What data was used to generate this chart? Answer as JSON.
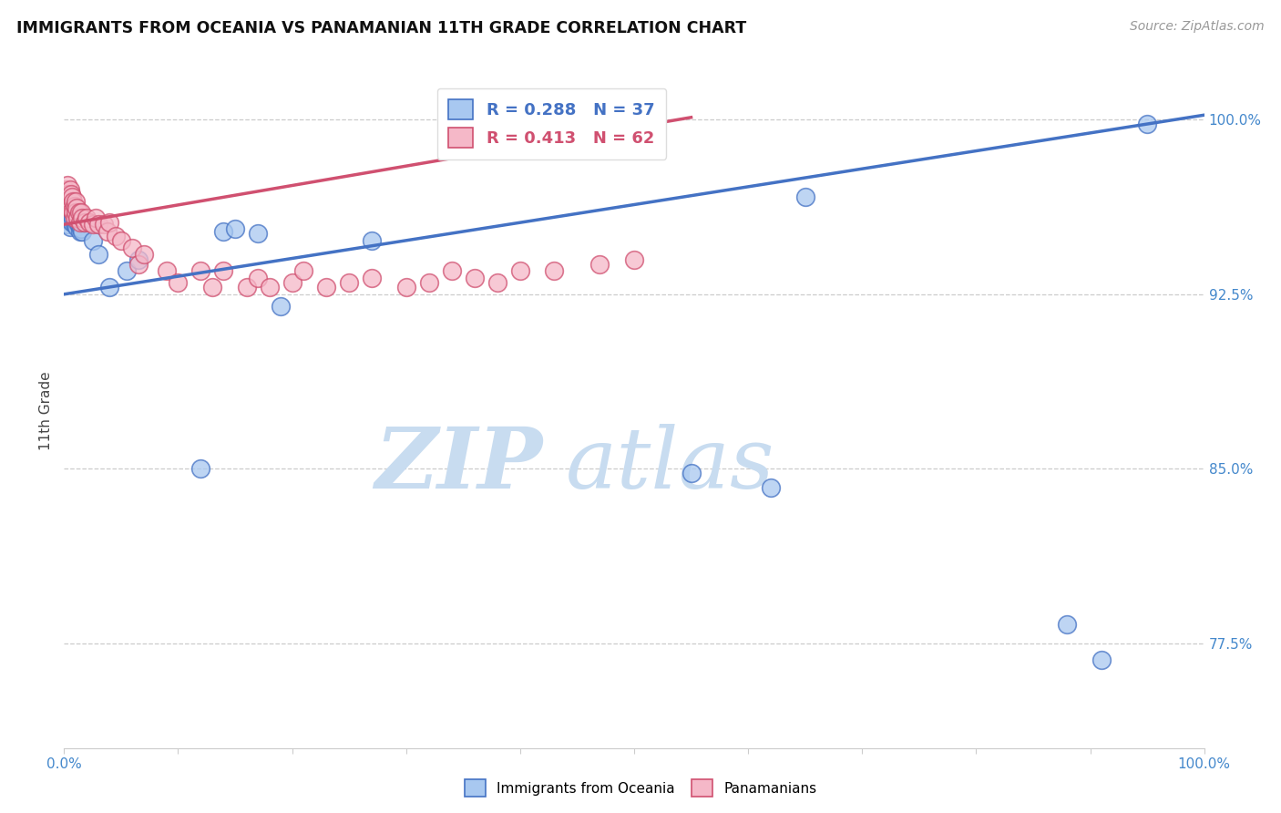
{
  "title": "IMMIGRANTS FROM OCEANIA VS PANAMANIAN 11TH GRADE CORRELATION CHART",
  "source": "Source: ZipAtlas.com",
  "ylabel": "11th Grade",
  "legend_blue_r": "R = 0.288",
  "legend_blue_n": "N = 37",
  "legend_pink_r": "R = 0.413",
  "legend_pink_n": "N = 62",
  "blue_color": "#A8C8F0",
  "pink_color": "#F5B8C8",
  "blue_line_color": "#4472C4",
  "pink_line_color": "#D05070",
  "blue_points_x": [
    0.001,
    0.002,
    0.003,
    0.003,
    0.004,
    0.004,
    0.005,
    0.005,
    0.006,
    0.007,
    0.008,
    0.009,
    0.01,
    0.011,
    0.012,
    0.013,
    0.014,
    0.015,
    0.016,
    0.017,
    0.025,
    0.03,
    0.04,
    0.055,
    0.065,
    0.12,
    0.14,
    0.15,
    0.17,
    0.19,
    0.27,
    0.55,
    0.62,
    0.65,
    0.88,
    0.91,
    0.95
  ],
  "blue_points_y": [
    0.961,
    0.958,
    0.963,
    0.955,
    0.96,
    0.957,
    0.958,
    0.954,
    0.957,
    0.956,
    0.958,
    0.955,
    0.956,
    0.954,
    0.956,
    0.955,
    0.952,
    0.953,
    0.952,
    0.956,
    0.948,
    0.942,
    0.928,
    0.935,
    0.94,
    0.85,
    0.952,
    0.953,
    0.951,
    0.92,
    0.948,
    0.848,
    0.842,
    0.967,
    0.783,
    0.768,
    0.998
  ],
  "pink_points_x": [
    0.001,
    0.001,
    0.002,
    0.002,
    0.003,
    0.003,
    0.004,
    0.004,
    0.005,
    0.005,
    0.006,
    0.006,
    0.007,
    0.007,
    0.008,
    0.008,
    0.009,
    0.009,
    0.01,
    0.01,
    0.011,
    0.012,
    0.013,
    0.014,
    0.015,
    0.016,
    0.018,
    0.02,
    0.022,
    0.025,
    0.028,
    0.03,
    0.035,
    0.038,
    0.04,
    0.045,
    0.05,
    0.06,
    0.065,
    0.07,
    0.09,
    0.1,
    0.12,
    0.13,
    0.14,
    0.16,
    0.17,
    0.18,
    0.2,
    0.21,
    0.23,
    0.25,
    0.27,
    0.3,
    0.32,
    0.34,
    0.36,
    0.38,
    0.4,
    0.43,
    0.47,
    0.5
  ],
  "pink_points_y": [
    0.97,
    0.965,
    0.968,
    0.963,
    0.972,
    0.965,
    0.968,
    0.963,
    0.97,
    0.964,
    0.968,
    0.962,
    0.967,
    0.961,
    0.965,
    0.96,
    0.963,
    0.958,
    0.965,
    0.96,
    0.962,
    0.958,
    0.96,
    0.956,
    0.96,
    0.958,
    0.956,
    0.958,
    0.956,
    0.955,
    0.958,
    0.955,
    0.955,
    0.952,
    0.956,
    0.95,
    0.948,
    0.945,
    0.938,
    0.942,
    0.935,
    0.93,
    0.935,
    0.928,
    0.935,
    0.928,
    0.932,
    0.928,
    0.93,
    0.935,
    0.928,
    0.93,
    0.932,
    0.928,
    0.93,
    0.935,
    0.932,
    0.93,
    0.935,
    0.935,
    0.938,
    0.94
  ],
  "xlim": [
    0.0,
    1.0
  ],
  "ylim": [
    0.73,
    1.02
  ],
  "y_tick_vals": [
    0.775,
    0.85,
    0.925,
    1.0
  ],
  "y_tick_labels": [
    "77.5%",
    "85.0%",
    "92.5%",
    "100.0%"
  ],
  "watermark_zip": "ZIP",
  "watermark_atlas": "atlas",
  "blue_line_x0": 0.0,
  "blue_line_y0": 0.925,
  "blue_line_x1": 1.0,
  "blue_line_y1": 1.002,
  "pink_line_x0": 0.0,
  "pink_line_y0": 0.955,
  "pink_line_x1": 0.55,
  "pink_line_y1": 1.001
}
